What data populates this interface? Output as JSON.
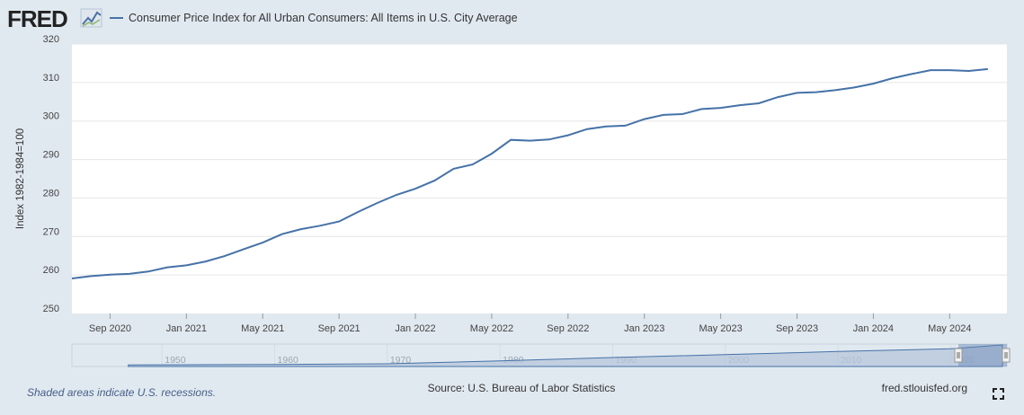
{
  "brand": "FRED",
  "legend": {
    "label": "Consumer Price Index for All Urban Consumers: All Items in U.S. City Average"
  },
  "footer": {
    "recession_note": "Shaded areas indicate U.S. recessions.",
    "source": "Source: U.S. Bureau of Labor Statistics",
    "site": "fred.stlouisfed.org"
  },
  "colors": {
    "line": "#4572a7",
    "background": "#e1e9f0",
    "plot": "#ffffff",
    "grid": "#e6e6e6"
  },
  "icons": {
    "logo_graph": "line-chart-icon",
    "fullscreen": "fullscreen-icon"
  },
  "navigator": {
    "ticks": [
      {
        "label": "1950",
        "year": 1950
      },
      {
        "label": "1960",
        "year": 1960
      },
      {
        "label": "1970",
        "year": 1970
      },
      {
        "label": "1980",
        "year": 1980
      },
      {
        "label": "1990",
        "year": 1990
      },
      {
        "label": "2000",
        "year": 2000
      },
      {
        "label": "2010",
        "year": 2010
      },
      {
        "label": "2020",
        "year": 2020
      }
    ]
  },
  "chart_data": {
    "type": "line",
    "title": "",
    "xlabel": "",
    "ylabel": "Index 1982-1984=100",
    "ylim": [
      250,
      320
    ],
    "yticks": [
      250,
      260,
      270,
      280,
      290,
      300,
      310,
      320
    ],
    "xlim": [
      "2020-07",
      "2024-08"
    ],
    "xticks": [
      {
        "label": "Sep 2020",
        "x": "2020-09"
      },
      {
        "label": "Jan 2021",
        "x": "2021-01"
      },
      {
        "label": "May 2021",
        "x": "2021-05"
      },
      {
        "label": "Sep 2021",
        "x": "2021-09"
      },
      {
        "label": "Jan 2022",
        "x": "2022-01"
      },
      {
        "label": "May 2022",
        "x": "2022-05"
      },
      {
        "label": "Sep 2022",
        "x": "2022-09"
      },
      {
        "label": "Jan 2023",
        "x": "2023-01"
      },
      {
        "label": "May 2023",
        "x": "2023-05"
      },
      {
        "label": "Sep 2023",
        "x": "2023-09"
      },
      {
        "label": "Jan 2024",
        "x": "2024-01"
      },
      {
        "label": "May 2024",
        "x": "2024-05"
      }
    ],
    "grid": true,
    "legend_position": "top-left",
    "series": [
      {
        "name": "Consumer Price Index for All Urban Consumers: All Items in U.S. City Average",
        "x": [
          "2020-07",
          "2020-08",
          "2020-09",
          "2020-10",
          "2020-11",
          "2020-12",
          "2021-01",
          "2021-02",
          "2021-03",
          "2021-04",
          "2021-05",
          "2021-06",
          "2021-07",
          "2021-08",
          "2021-09",
          "2021-10",
          "2021-11",
          "2021-12",
          "2022-01",
          "2022-02",
          "2022-03",
          "2022-04",
          "2022-05",
          "2022-06",
          "2022-07",
          "2022-08",
          "2022-09",
          "2022-10",
          "2022-11",
          "2022-12",
          "2023-01",
          "2023-02",
          "2023-03",
          "2023-04",
          "2023-05",
          "2023-06",
          "2023-07",
          "2023-08",
          "2023-09",
          "2023-10",
          "2023-11",
          "2023-12",
          "2024-01",
          "2024-02",
          "2024-03",
          "2024-04",
          "2024-05",
          "2024-06",
          "2024-07"
        ],
        "values": [
          259.1,
          259.7,
          260.1,
          260.3,
          260.9,
          262.0,
          262.5,
          263.5,
          264.9,
          266.7,
          268.4,
          270.6,
          271.9,
          272.8,
          273.9,
          276.4,
          278.7,
          280.8,
          282.4,
          284.5,
          287.6,
          288.7,
          291.5,
          295.1,
          294.9,
          295.2,
          296.3,
          297.9,
          298.6,
          298.8,
          300.5,
          301.6,
          301.8,
          303.1,
          303.4,
          304.1,
          304.6,
          306.2,
          307.3,
          307.5,
          308.0,
          308.7,
          309.7,
          311.1,
          312.2,
          313.2,
          313.2,
          313.0,
          313.5
        ]
      }
    ]
  }
}
